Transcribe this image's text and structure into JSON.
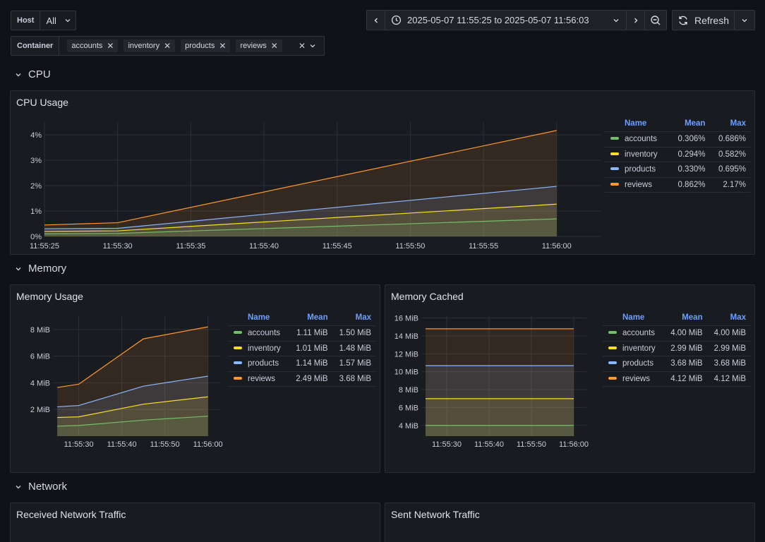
{
  "colors": {
    "accounts": "#73bf69",
    "inventory": "#fade2a",
    "products": "#8ab8ff",
    "reviews": "#ff9830"
  },
  "variables": {
    "host": {
      "label": "Host",
      "value": "All"
    },
    "container": {
      "label": "Container",
      "chips": [
        "accounts",
        "inventory",
        "products",
        "reviews"
      ]
    }
  },
  "time": {
    "range": "2025-05-07 11:55:25 to 2025-05-07 11:56:03",
    "refresh_label": "Refresh"
  },
  "rows": {
    "cpu": "CPU",
    "memory": "Memory",
    "network": "Network"
  },
  "legend_headers": {
    "name": "Name",
    "mean": "Mean",
    "max": "Max"
  },
  "panels": {
    "cpu": {
      "title": "CPU Usage",
      "legend": [
        {
          "name": "accounts",
          "mean": "0.306%",
          "max": "0.686%"
        },
        {
          "name": "inventory",
          "mean": "0.294%",
          "max": "0.582%"
        },
        {
          "name": "products",
          "mean": "0.330%",
          "max": "0.695%"
        },
        {
          "name": "reviews",
          "mean": "0.862%",
          "max": "2.17%"
        }
      ]
    },
    "mem_usage": {
      "title": "Memory Usage",
      "legend": [
        {
          "name": "accounts",
          "mean": "1.11 MiB",
          "max": "1.50 MiB"
        },
        {
          "name": "inventory",
          "mean": "1.01 MiB",
          "max": "1.48 MiB"
        },
        {
          "name": "products",
          "mean": "1.14 MiB",
          "max": "1.57 MiB"
        },
        {
          "name": "reviews",
          "mean": "2.49 MiB",
          "max": "3.68 MiB"
        }
      ]
    },
    "mem_cached": {
      "title": "Memory Cached",
      "legend": [
        {
          "name": "accounts",
          "mean": "4.00 MiB",
          "max": "4.00 MiB"
        },
        {
          "name": "inventory",
          "mean": "2.99 MiB",
          "max": "2.99 MiB"
        },
        {
          "name": "products",
          "mean": "3.68 MiB",
          "max": "3.68 MiB"
        },
        {
          "name": "reviews",
          "mean": "4.12 MiB",
          "max": "4.12 MiB"
        }
      ]
    },
    "net_recv": {
      "title": "Received Network Traffic"
    },
    "net_sent": {
      "title": "Sent Network Traffic"
    }
  },
  "chart_data": [
    {
      "id": "cpu",
      "type": "area",
      "x": [
        "11:55:25",
        "11:55:30",
        "11:56:00"
      ],
      "xticks": [
        "11:55:25",
        "11:55:30",
        "11:55:35",
        "11:55:40",
        "11:55:45",
        "11:55:50",
        "11:55:55",
        "11:56:00"
      ],
      "yticks": [
        "0%",
        "1%",
        "2%",
        "3%",
        "4%"
      ],
      "ylim": [
        0,
        4.5
      ],
      "x_seconds_domain": [
        25,
        63
      ],
      "series": [
        {
          "name": "accounts",
          "x_seconds": [
            25,
            30,
            60
          ],
          "values": [
            0.1,
            0.12,
            0.69
          ]
        },
        {
          "name": "inventory",
          "x_seconds": [
            25,
            30,
            60
          ],
          "values": [
            0.2,
            0.22,
            1.27
          ]
        },
        {
          "name": "products",
          "x_seconds": [
            25,
            30,
            60
          ],
          "values": [
            0.3,
            0.32,
            1.97
          ]
        },
        {
          "name": "reviews",
          "x_seconds": [
            25,
            30,
            60
          ],
          "values": [
            0.45,
            0.54,
            4.17
          ]
        }
      ]
    },
    {
      "id": "mem_usage",
      "type": "area",
      "xticks": [
        "11:55:30",
        "11:55:40",
        "11:55:50",
        "11:56:00"
      ],
      "yticks": [
        "2 MiB",
        "4 MiB",
        "6 MiB",
        "8 MiB"
      ],
      "ylim": [
        0,
        9
      ],
      "x_seconds_domain": [
        24,
        63
      ],
      "series": [
        {
          "name": "accounts",
          "x_seconds": [
            25,
            30,
            45,
            60
          ],
          "values": [
            0.75,
            0.8,
            1.2,
            1.5
          ]
        },
        {
          "name": "inventory",
          "x_seconds": [
            25,
            30,
            45,
            60
          ],
          "values": [
            1.4,
            1.45,
            2.4,
            2.95
          ]
        },
        {
          "name": "products",
          "x_seconds": [
            25,
            30,
            45,
            60
          ],
          "values": [
            2.2,
            2.3,
            3.75,
            4.5
          ]
        },
        {
          "name": "reviews",
          "x_seconds": [
            25,
            30,
            45,
            60
          ],
          "values": [
            3.65,
            3.9,
            7.3,
            8.2
          ]
        }
      ]
    },
    {
      "id": "mem_cached",
      "type": "area",
      "xticks": [
        "11:55:30",
        "11:55:40",
        "11:55:50",
        "11:56:00"
      ],
      "yticks": [
        "4 MiB",
        "6 MiB",
        "8 MiB",
        "10 MiB",
        "12 MiB",
        "14 MiB",
        "16 MiB"
      ],
      "ylim": [
        2.8,
        16.2
      ],
      "x_seconds_domain": [
        24,
        63
      ],
      "series": [
        {
          "name": "accounts",
          "x_seconds": [
            25,
            60
          ],
          "values": [
            4.0,
            4.0
          ]
        },
        {
          "name": "inventory",
          "x_seconds": [
            25,
            60
          ],
          "values": [
            6.99,
            6.99
          ]
        },
        {
          "name": "products",
          "x_seconds": [
            25,
            60
          ],
          "values": [
            10.67,
            10.67
          ]
        },
        {
          "name": "reviews",
          "x_seconds": [
            25,
            60
          ],
          "values": [
            14.79,
            14.79
          ]
        }
      ]
    }
  ]
}
